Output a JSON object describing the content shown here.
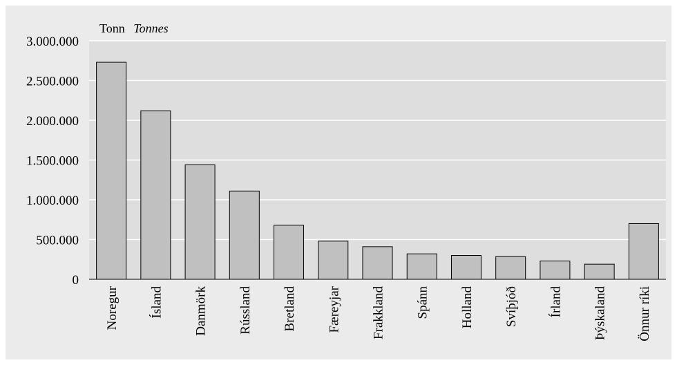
{
  "chart_data": {
    "type": "bar",
    "unit_label": "Tonn",
    "unit_label_en": "Tonnes",
    "categories": [
      "Noregur",
      "Ísland",
      "Danmörk",
      "Rússland",
      "Bretland",
      "Færeyjar",
      "Frakkland",
      "Spánn",
      "Holland",
      "Svíþjóð",
      "Írland",
      "Þýskaland",
      "Önnur ríki"
    ],
    "values": [
      2730000,
      2120000,
      1440000,
      1110000,
      680000,
      480000,
      410000,
      320000,
      300000,
      285000,
      230000,
      190000,
      700000
    ],
    "ylim": [
      0,
      3000000
    ],
    "yticks": [
      0,
      500000,
      1000000,
      1500000,
      2000000,
      2500000,
      3000000
    ],
    "ytick_labels": [
      "0",
      "500.000",
      "1.000.000",
      "1.500.000",
      "2.000.000",
      "2.500.000",
      "3.000.000"
    ],
    "grid": true,
    "colors": {
      "frame_background": "#ebebeb",
      "plot_background": "#dedede",
      "bar_fill": "#c0c0c0",
      "bar_stroke": "#000000",
      "gridline": "#ffffff"
    }
  }
}
